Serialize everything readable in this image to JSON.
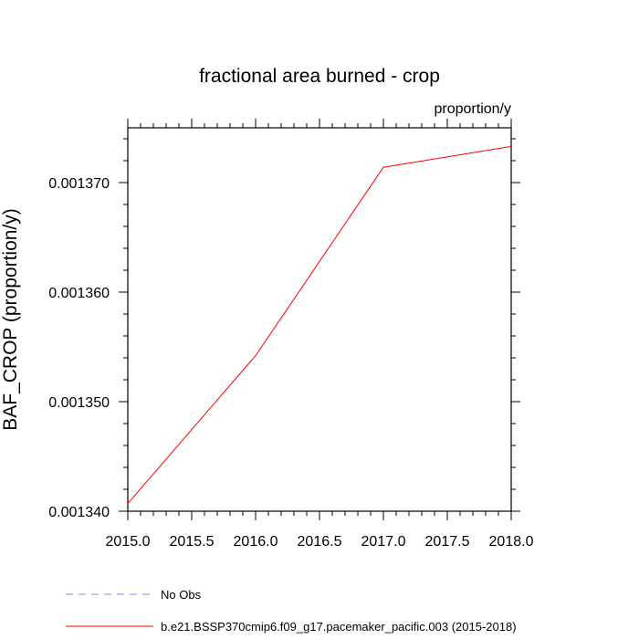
{
  "chart_data": {
    "type": "line",
    "title": "fractional area burned - crop",
    "units_label": "proportion/y",
    "ylabel": "BAF_CROP  (proportion/y)",
    "xlabel": "",
    "xlim": [
      2015.0,
      2018.0
    ],
    "ylim": [
      0.00134,
      0.001375
    ],
    "x_ticks": [
      2015.0,
      2015.5,
      2016.0,
      2016.5,
      2017.0,
      2017.5,
      2018.0
    ],
    "x_tick_labels": [
      "2015.0",
      "2015.5",
      "2016.0",
      "2016.5",
      "2017.0",
      "2017.5",
      "2018.0"
    ],
    "y_ticks": [
      0.00134,
      0.00135,
      0.00136,
      0.00137
    ],
    "y_tick_labels": [
      "0.001340",
      "0.001350",
      "0.001360",
      "0.001370"
    ],
    "grid": false,
    "legend_position": "bottom",
    "series": [
      {
        "name": "No Obs",
        "color": "#8080ff",
        "dash": "dashed",
        "x": [],
        "values": []
      },
      {
        "name": "b.e21.BSSP370cmip6.f09_g17.pacemaker_pacific.003 (2015-2018)",
        "color": "#ff0000",
        "dash": "solid",
        "x": [
          2015,
          2016,
          2017,
          2018
        ],
        "values": [
          0.0013407,
          0.0013542,
          0.0013714,
          0.0013733
        ]
      }
    ]
  }
}
